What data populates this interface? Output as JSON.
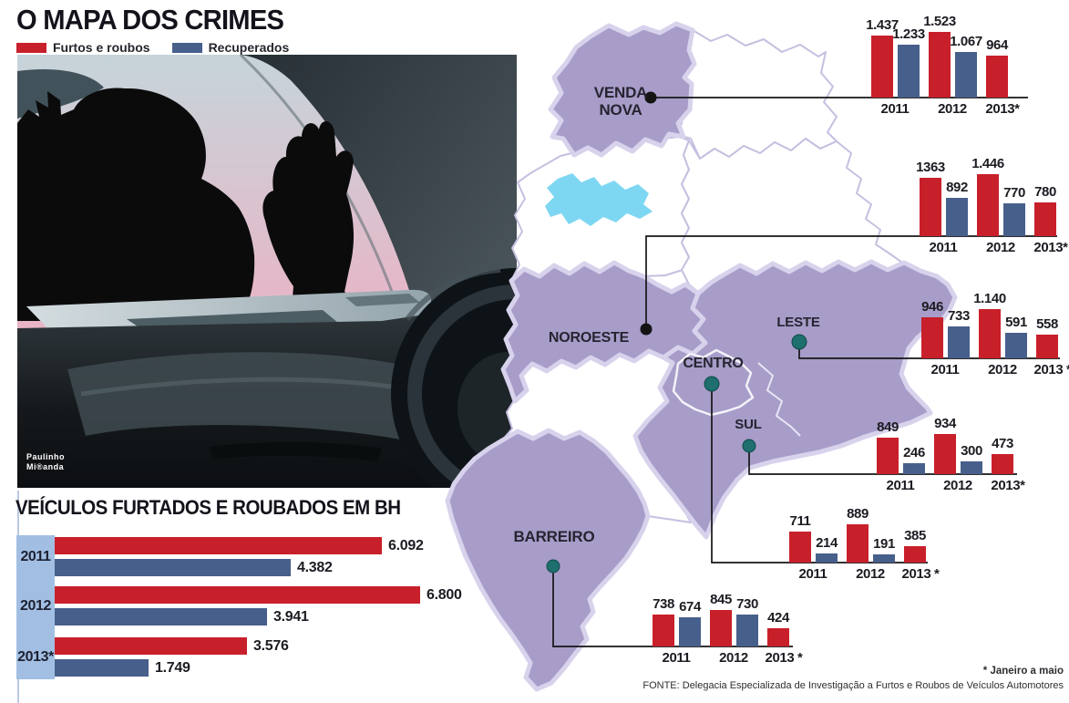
{
  "header": {
    "title": "O MAPA DOS CRIMES",
    "legend": {
      "furtos": "Furtos e roubos",
      "recuperados": "Recuperados"
    }
  },
  "colors": {
    "furtos": "#c8202b",
    "recuperados": "#475f8b",
    "map_region": "#a89cc9",
    "map_halo": "#d8d2ec",
    "map_border": "#c6bfe0",
    "lake": "#7ed7f2",
    "marker_teal": "#1e6f6d",
    "marker_black": "#141414",
    "year_band": "#a2bfe3"
  },
  "illustration": {
    "credit_line1": "Paulinho",
    "credit_line2": "Mi®anda"
  },
  "map": {
    "regions": [
      {
        "id": "venda-nova",
        "label": "VENDA NOVA"
      },
      {
        "id": "noroeste",
        "label": "NOROESTE"
      },
      {
        "id": "leste",
        "label": "LESTE"
      },
      {
        "id": "centro",
        "label": "CENTRO"
      },
      {
        "id": "sul",
        "label": "SUL"
      },
      {
        "id": "barreiro",
        "label": "BARREIRO"
      }
    ]
  },
  "chart_data": [
    {
      "id": "venda-nova",
      "region": "VENDA NOVA",
      "type": "bar",
      "categories": [
        "2011",
        "2012",
        "2013*"
      ],
      "series": [
        {
          "name": "Furtos e roubos",
          "values": [
            1437,
            1523,
            964
          ],
          "labels": [
            "1.437",
            "1.523",
            "964"
          ]
        },
        {
          "name": "Recuperados",
          "values": [
            1233,
            1067,
            null
          ],
          "labels": [
            "1.233",
            "1.067",
            null
          ]
        }
      ]
    },
    {
      "id": "noroeste",
      "region": "NOROESTE",
      "type": "bar",
      "categories": [
        "2011",
        "2012",
        "2013*"
      ],
      "series": [
        {
          "name": "Furtos e roubos",
          "values": [
            1363,
            1446,
            780
          ],
          "labels": [
            "1363",
            "1.446",
            "780"
          ]
        },
        {
          "name": "Recuperados",
          "values": [
            892,
            770,
            null
          ],
          "labels": [
            "892",
            "770",
            null
          ]
        }
      ]
    },
    {
      "id": "leste",
      "region": "LESTE",
      "type": "bar",
      "categories": [
        "2011",
        "2012",
        "2013 *"
      ],
      "series": [
        {
          "name": "Furtos e roubos",
          "values": [
            946,
            1140,
            558
          ],
          "labels": [
            "946",
            "1.140",
            "558"
          ]
        },
        {
          "name": "Recuperados",
          "values": [
            733,
            591,
            null
          ],
          "labels": [
            "733",
            "591",
            null
          ]
        }
      ]
    },
    {
      "id": "sul",
      "region": "SUL",
      "type": "bar",
      "categories": [
        "2011",
        "2012",
        "2013*"
      ],
      "series": [
        {
          "name": "Furtos e roubos",
          "values": [
            849,
            934,
            473
          ],
          "labels": [
            "849",
            "934",
            "473"
          ]
        },
        {
          "name": "Recuperados",
          "values": [
            246,
            300,
            null
          ],
          "labels": [
            "246",
            "300",
            null
          ]
        }
      ]
    },
    {
      "id": "centro",
      "region": "CENTRO",
      "type": "bar",
      "categories": [
        "2011",
        "2012",
        "2013 *"
      ],
      "series": [
        {
          "name": "Furtos e roubos",
          "values": [
            711,
            889,
            385
          ],
          "labels": [
            "711",
            "889",
            "385"
          ]
        },
        {
          "name": "Recuperados",
          "values": [
            214,
            191,
            null
          ],
          "labels": [
            "214",
            "191",
            null
          ]
        }
      ]
    },
    {
      "id": "barreiro",
      "region": "BARREIRO",
      "type": "bar",
      "categories": [
        "2011",
        "2012",
        "2013 *"
      ],
      "series": [
        {
          "name": "Furtos e roubos",
          "values": [
            738,
            845,
            424
          ],
          "labels": [
            "738",
            "845",
            "424"
          ]
        },
        {
          "name": "Recuperados",
          "values": [
            674,
            730,
            null
          ],
          "labels": [
            "674",
            "730",
            null
          ]
        }
      ]
    },
    {
      "id": "bh-total",
      "type": "bar",
      "orientation": "horizontal",
      "title": "VEÍCULOS FURTADOS E ROUBADOS EM BH",
      "categories": [
        "2011",
        "2012",
        "2013*"
      ],
      "series": [
        {
          "name": "Furtos e roubos",
          "values": [
            6092,
            6800,
            3576
          ],
          "labels": [
            "6.092",
            "6.800",
            "3.576"
          ]
        },
        {
          "name": "Recuperados",
          "values": [
            4382,
            3941,
            1749
          ],
          "labels": [
            "4.382",
            "3.941",
            "1.749"
          ]
        }
      ]
    }
  ],
  "footer": {
    "note": "* Janeiro a maio",
    "source": "FONTE: Delegacia Especializada de Investigação a Furtos e Roubos de Veículos Automotores"
  }
}
